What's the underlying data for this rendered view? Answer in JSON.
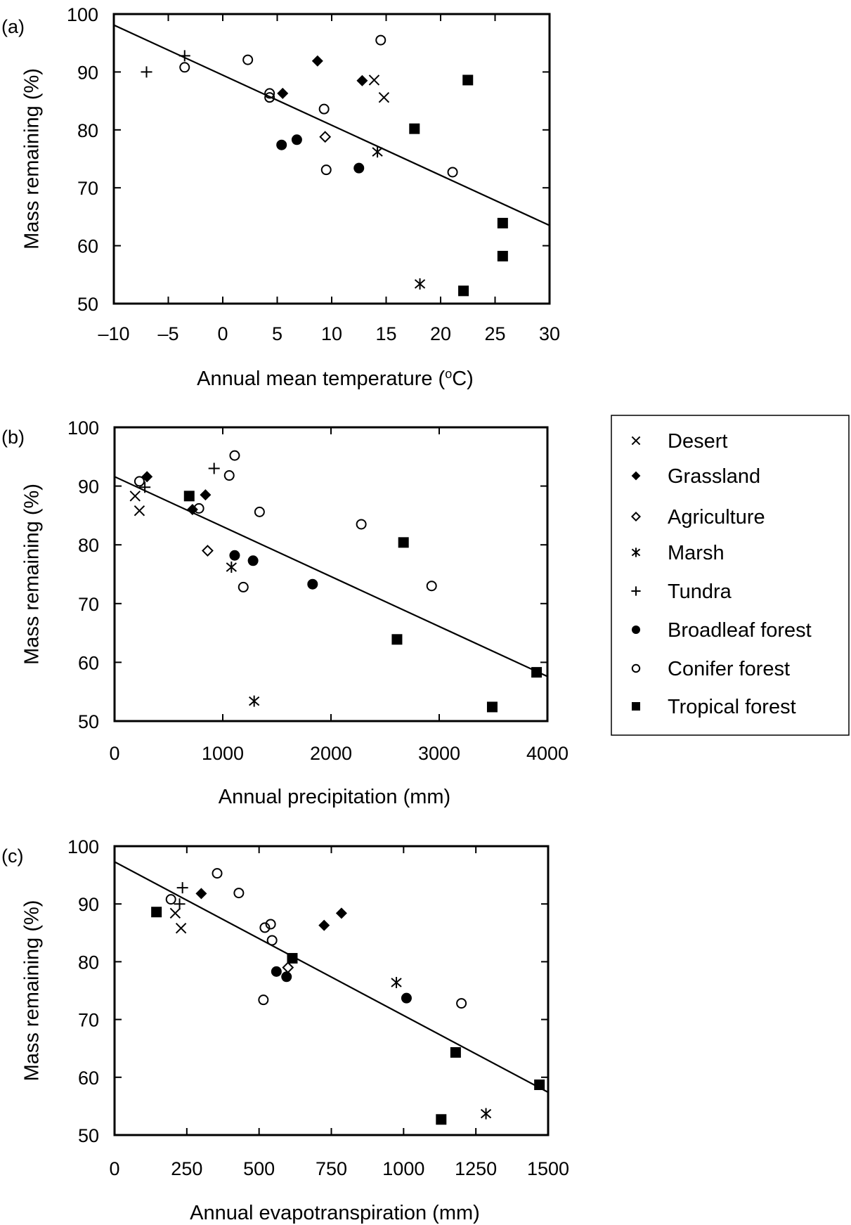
{
  "chart_data": [
    {
      "type": "scatter",
      "panel_label": "(a)",
      "xlabel": "Annual mean temperature (",
      "xlabel_sup": "o",
      "xlabel_end": "C)",
      "ylabel": "Mass remaining (%)",
      "xlim": [
        -10,
        30
      ],
      "ylim": [
        50,
        100
      ],
      "xticks": [
        -10,
        -5,
        0,
        5,
        10,
        15,
        20,
        25,
        30
      ],
      "xtick_labels": [
        "–10",
        "–5",
        "0",
        "5",
        "10",
        "15",
        "20",
        "25",
        "30"
      ],
      "yticks": [
        50,
        60,
        70,
        80,
        90,
        100
      ],
      "ytick_labels": [
        "50",
        "60",
        "70",
        "80",
        "90",
        "100"
      ],
      "regression_line": [
        [
          -10,
          98.1
        ],
        [
          30,
          63.5
        ]
      ],
      "series": [
        {
          "name": "Desert",
          "points": [
            [
              13.9,
              88.6
            ],
            [
              14.8,
              85.6
            ]
          ]
        },
        {
          "name": "Grassland",
          "points": [
            [
              5.5,
              86.3
            ],
            [
              8.7,
              91.9
            ],
            [
              12.8,
              88.5
            ]
          ]
        },
        {
          "name": "Agriculture",
          "points": [
            [
              9.4,
              78.8
            ]
          ]
        },
        {
          "name": "Marsh",
          "points": [
            [
              14.2,
              76.2
            ],
            [
              18.1,
              53.4
            ]
          ]
        },
        {
          "name": "Tundra",
          "points": [
            [
              -7.0,
              90.0
            ],
            [
              -3.5,
              92.8
            ]
          ]
        },
        {
          "name": "Broadleaf forest",
          "points": [
            [
              5.4,
              77.4
            ],
            [
              6.8,
              78.3
            ],
            [
              12.5,
              73.4
            ]
          ]
        },
        {
          "name": "Conifer forest",
          "points": [
            [
              -3.5,
              90.8
            ],
            [
              2.3,
              92.1
            ],
            [
              4.3,
              86.3
            ],
            [
              4.3,
              85.6
            ],
            [
              9.3,
              83.6
            ],
            [
              9.5,
              73.1
            ],
            [
              14.5,
              95.5
            ],
            [
              21.1,
              72.7
            ]
          ]
        },
        {
          "name": "Tropical forest",
          "points": [
            [
              17.6,
              80.2
            ],
            [
              22.5,
              88.6
            ],
            [
              25.7,
              63.9
            ],
            [
              25.7,
              58.2
            ],
            [
              22.1,
              52.2
            ]
          ]
        }
      ]
    },
    {
      "type": "scatter",
      "panel_label": "(b)",
      "xlabel": "Annual precipitation (mm)",
      "ylabel": "Mass remaining (%)",
      "xlim": [
        0,
        4000
      ],
      "ylim": [
        50,
        100
      ],
      "xticks": [
        0,
        1000,
        2000,
        3000,
        4000
      ],
      "xtick_labels": [
        "0",
        "1000",
        "2000",
        "3000",
        "4000"
      ],
      "yticks": [
        50,
        60,
        70,
        80,
        90,
        100
      ],
      "ytick_labels": [
        "50",
        "60",
        "70",
        "80",
        "90",
        "100"
      ],
      "regression_line": [
        [
          0,
          91.6
        ],
        [
          4000,
          57.6
        ]
      ],
      "series": [
        {
          "name": "Desert",
          "points": [
            [
              190,
              88.3
            ],
            [
              230,
              85.8
            ]
          ]
        },
        {
          "name": "Grassland",
          "points": [
            [
              300,
              91.6
            ],
            [
              720,
              86.0
            ],
            [
              840,
              88.5
            ]
          ]
        },
        {
          "name": "Agriculture",
          "points": [
            [
              860,
              79.0
            ]
          ]
        },
        {
          "name": "Marsh",
          "points": [
            [
              1080,
              76.2
            ],
            [
              1290,
              53.4
            ]
          ]
        },
        {
          "name": "Tundra",
          "points": [
            [
              280,
              89.8
            ],
            [
              920,
              93.0
            ]
          ]
        },
        {
          "name": "Broadleaf forest",
          "points": [
            [
              1110,
              78.2
            ],
            [
              1280,
              77.3
            ],
            [
              1830,
              73.3
            ]
          ]
        },
        {
          "name": "Conifer forest",
          "points": [
            [
              230,
              90.8
            ],
            [
              780,
              86.2
            ],
            [
              1060,
              91.8
            ],
            [
              1110,
              95.2
            ],
            [
              1340,
              85.6
            ],
            [
              2280,
              83.5
            ],
            [
              2930,
              73.0
            ],
            [
              1190,
              72.8
            ]
          ]
        },
        {
          "name": "Tropical forest",
          "points": [
            [
              690,
              88.3
            ],
            [
              2670,
              80.4
            ],
            [
              2610,
              63.9
            ],
            [
              3490,
              52.4
            ],
            [
              3900,
              58.3
            ]
          ]
        }
      ]
    },
    {
      "type": "scatter",
      "panel_label": "(c)",
      "xlabel": "Annual evapotranspiration (mm)",
      "ylabel": "Mass remaining (%)",
      "xlim": [
        0,
        1500
      ],
      "ylim": [
        50,
        100
      ],
      "xticks": [
        0,
        250,
        500,
        750,
        1000,
        1250,
        1500
      ],
      "xtick_labels": [
        "0",
        "250",
        "500",
        "750",
        "1000",
        "1250",
        "1500"
      ],
      "yticks": [
        50,
        60,
        70,
        80,
        90,
        100
      ],
      "ytick_labels": [
        "50",
        "60",
        "70",
        "80",
        "90",
        "100"
      ],
      "regression_line": [
        [
          0,
          97.3
        ],
        [
          1500,
          57.4
        ]
      ],
      "series": [
        {
          "name": "Desert",
          "points": [
            [
              210,
              88.4
            ],
            [
              230,
              85.8
            ]
          ]
        },
        {
          "name": "Grassland",
          "points": [
            [
              300,
              91.8
            ],
            [
              725,
              86.3
            ],
            [
              785,
              88.4
            ]
          ]
        },
        {
          "name": "Agriculture",
          "points": [
            [
              600,
              79.0
            ]
          ]
        },
        {
          "name": "Marsh",
          "points": [
            [
              975,
              76.4
            ],
            [
              1285,
              53.7
            ]
          ]
        },
        {
          "name": "Tundra",
          "points": [
            [
              235,
              92.8
            ],
            [
              225,
              90.0
            ]
          ]
        },
        {
          "name": "Broadleaf forest",
          "points": [
            [
              560,
              78.3
            ],
            [
              595,
              77.4
            ],
            [
              1010,
              73.7
            ]
          ]
        },
        {
          "name": "Conifer forest",
          "points": [
            [
              195,
              90.8
            ],
            [
              355,
              95.3
            ],
            [
              430,
              91.9
            ],
            [
              520,
              85.9
            ],
            [
              540,
              86.5
            ],
            [
              545,
              83.7
            ],
            [
              515,
              73.4
            ],
            [
              1200,
              72.8
            ]
          ]
        },
        {
          "name": "Tropical forest",
          "points": [
            [
              145,
              88.6
            ],
            [
              615,
              80.6
            ],
            [
              1180,
              64.3
            ],
            [
              1470,
              58.7
            ],
            [
              1130,
              52.7
            ]
          ]
        }
      ]
    }
  ],
  "legend": {
    "placement": "right",
    "entries": [
      {
        "label": "Desert",
        "marker": "x-cross"
      },
      {
        "label": "Grassland",
        "marker": "filled-diamond"
      },
      {
        "label": "Agriculture",
        "marker": "open-diamond"
      },
      {
        "label": "Marsh",
        "marker": "asterisk"
      },
      {
        "label": "Tundra",
        "marker": "plus"
      },
      {
        "label": "Broadleaf forest",
        "marker": "filled-circle"
      },
      {
        "label": "Conifer forest",
        "marker": "open-circle"
      },
      {
        "label": "Tropical forest",
        "marker": "filled-square"
      }
    ]
  },
  "colors": {
    "ink": "#000000",
    "background": "#ffffff"
  }
}
